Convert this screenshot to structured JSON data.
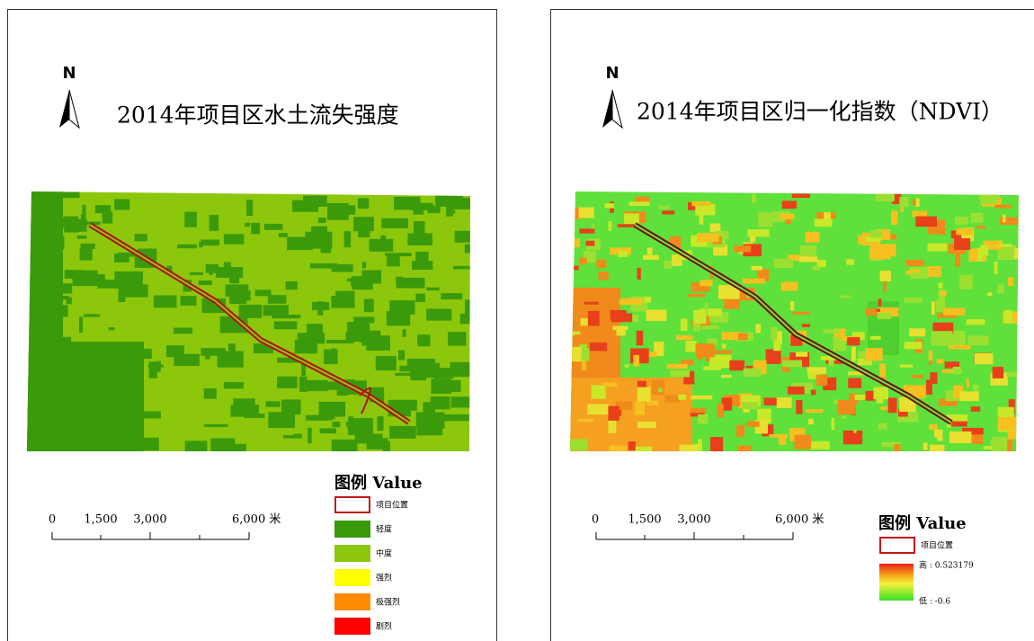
{
  "panels": [
    {
      "north": "N",
      "title": "2014年项目区水土流失强度",
      "legend": {
        "title": "图例 Value",
        "items": [
          "项目位置",
          "轻度",
          "中度",
          "强烈",
          "极强烈",
          "剧烈"
        ]
      },
      "scale": [
        "0",
        "1,500",
        "3,000",
        "6,000 米"
      ]
    },
    {
      "north": "N",
      "title": "2014年项目区归一化指数（NDVI）",
      "legend": {
        "title": "图例 Value",
        "items": [
          "项目位置",
          "高 : 0.523179",
          "低 : -0.6"
        ]
      },
      "scale": [
        "0",
        "1,500",
        "3,000",
        "6,000 米"
      ]
    }
  ]
}
